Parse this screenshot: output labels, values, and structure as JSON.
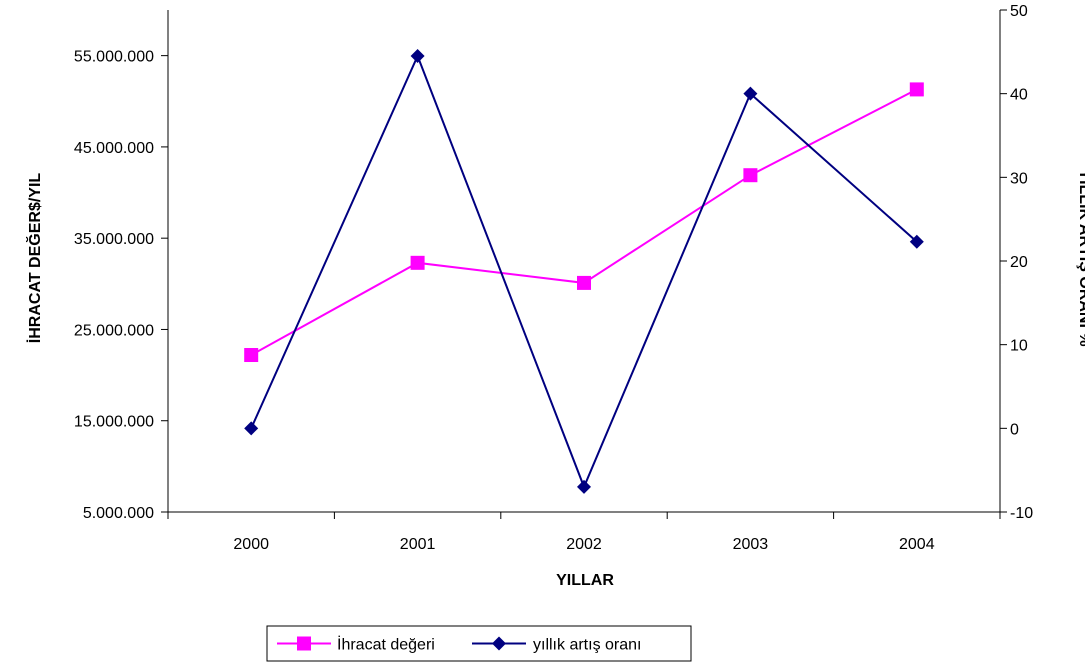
{
  "chart_data": {
    "type": "line",
    "categories": [
      "2000",
      "2001",
      "2002",
      "2003",
      "2004"
    ],
    "xlabel": "YILLAR",
    "y_left": {
      "label": "İHRACAT DEĞER$/YIL",
      "range": [
        5000000,
        60000000
      ],
      "tick_values": [
        5000000,
        15000000,
        25000000,
        35000000,
        45000000,
        55000000
      ],
      "tick_labels": [
        "5.000.000",
        "15.000.000",
        "25.000.000",
        "35.000.000",
        "45.000.000",
        "55.000.000"
      ]
    },
    "y_right": {
      "label": "YILLIK ARTIŞ ORANI %",
      "range": [
        -10,
        50
      ],
      "tick_values": [
        -10,
        0,
        10,
        20,
        30,
        40,
        50
      ],
      "tick_labels": [
        "-10",
        "0",
        "10",
        "20",
        "30",
        "40",
        "50"
      ]
    },
    "series": [
      {
        "name": "İhracat değeri",
        "axis": "left",
        "color": "#ff00ff",
        "marker": "square",
        "values": [
          22200000,
          32300000,
          30100000,
          41900000,
          51300000
        ]
      },
      {
        "name": "yıllık artış oranı",
        "axis": "right",
        "color": "#000080",
        "marker": "diamond",
        "values": [
          0,
          44.5,
          -7,
          40,
          22.3
        ]
      }
    ],
    "legend_position": "bottom",
    "grid": false
  }
}
